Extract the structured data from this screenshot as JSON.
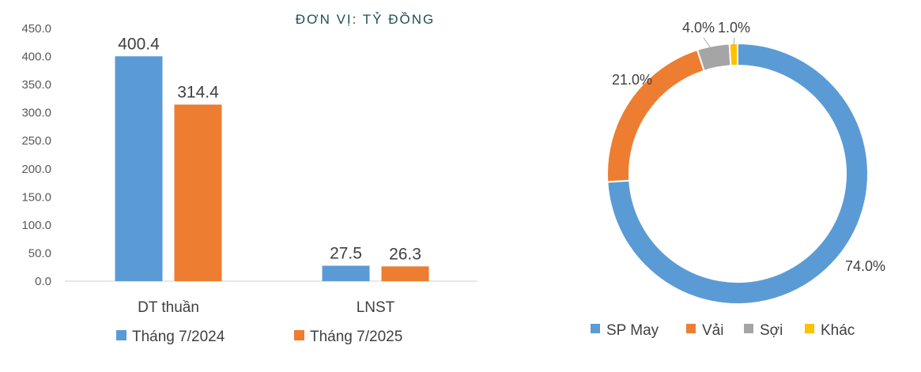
{
  "bar_chart_data": {
    "type": "bar",
    "title": "ĐƠN VỊ: TỶ ĐỒNG",
    "categories": [
      "DT thuần",
      "LNST"
    ],
    "series": [
      {
        "name": "Tháng 7/2024",
        "values": [
          400.4,
          27.5
        ],
        "labels": [
          "400.4",
          "27.5"
        ],
        "color": "#5b9bd5"
      },
      {
        "name": "Tháng 7/2025",
        "values": [
          314.4,
          26.3
        ],
        "labels": [
          "314.4",
          "26.3"
        ],
        "color": "#ed7d31"
      }
    ],
    "yticks": [
      "0.0",
      "50.0",
      "100.0",
      "150.0",
      "200.0",
      "250.0",
      "300.0",
      "350.0",
      "400.0",
      "450.0"
    ],
    "ylim": [
      0,
      450
    ],
    "grid": false,
    "legend": "bottom"
  },
  "chart_data": {
    "type": "pie",
    "donut": true,
    "slices": [
      {
        "name": "SP May",
        "value": 74.0,
        "label": "74.0%",
        "color": "#5b9bd5"
      },
      {
        "name": "Vải",
        "value": 21.0,
        "label": "21.0%",
        "color": "#ed7d31"
      },
      {
        "name": "Sợi",
        "value": 4.0,
        "label": "4.0%",
        "color": "#a5a5a5"
      },
      {
        "name": "Khác",
        "value": 1.0,
        "label": "1.0%",
        "color": "#ffc000"
      }
    ],
    "legend": "bottom"
  }
}
